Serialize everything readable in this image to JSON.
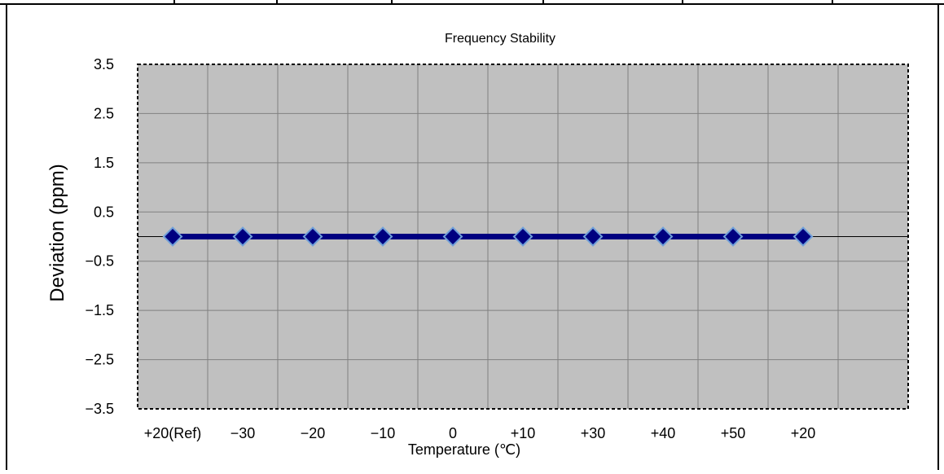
{
  "chart_data": {
    "type": "line",
    "title": "Frequency Stability",
    "xlabel": "Temperature (℃)",
    "ylabel": "Deviation (ppm)",
    "categories": [
      "+20(Ref)",
      "−30",
      "−20",
      "−10",
      "0",
      "+10",
      "+30",
      "+40",
      "+50",
      "+20"
    ],
    "series": [
      {
        "values": [
          0,
          0,
          0,
          0,
          0,
          0,
          0,
          0,
          0,
          0
        ]
      }
    ],
    "ylim": [
      -3.5,
      3.5
    ],
    "yticks": [
      3.5,
      2.5,
      1.5,
      0.5,
      -0.5,
      -1.5,
      -2.5,
      -3.5
    ],
    "ytick_labels": [
      "3.5",
      "2.5",
      "1.5",
      "0.5",
      "−0.5",
      "−1.5",
      "−2.5",
      "−3.5"
    ],
    "grid": true,
    "legend": "none",
    "colors": {
      "series": "#000080",
      "marker_edge": "#6f9fd8",
      "plot_bg": "#c0c0c0",
      "grid": "#808080"
    }
  }
}
